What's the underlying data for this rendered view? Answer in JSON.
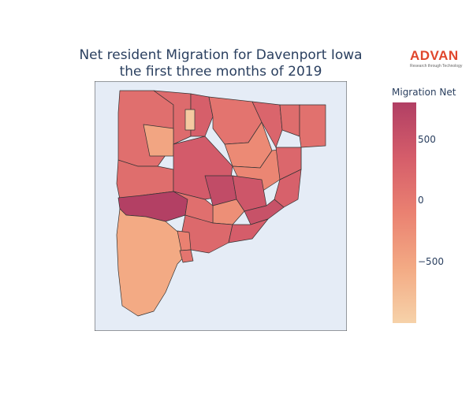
{
  "title": {
    "line1": "Net resident Migration for Davenport Iowa",
    "line2": "the first three months of 2019"
  },
  "brand": {
    "name": "ADVAN",
    "tagline": "Research through Technology",
    "color": "#e0462c"
  },
  "colorbar": {
    "title": "Migration Net",
    "ticks": [
      {
        "label": "500",
        "value": 500
      },
      {
        "label": "0",
        "value": 0
      },
      {
        "label": "−500",
        "value": -500
      }
    ],
    "range": [
      -1000,
      800
    ],
    "colorscale": [
      "#f6d2a9",
      "#f3aa84",
      "#ea8171",
      "#d55d6a",
      "#b13f64"
    ]
  },
  "map": {
    "background": "#e5ecf6",
    "border_color": "#444444",
    "regions": [
      {
        "id": "north-west",
        "value": 120
      },
      {
        "id": "north-central-1",
        "value": 180
      },
      {
        "id": "north-central-2",
        "value": 320
      },
      {
        "id": "north-narrow",
        "value": -900
      },
      {
        "id": "north-east-1",
        "value": 60
      },
      {
        "id": "north-east-2",
        "value": -200
      },
      {
        "id": "north-east-3",
        "value": 250
      },
      {
        "id": "north-east-4",
        "value": 150
      },
      {
        "id": "north-east-5",
        "value": 100
      },
      {
        "id": "north-west-lobe",
        "value": -500
      },
      {
        "id": "mid-west",
        "value": 140
      },
      {
        "id": "mid-central",
        "value": 380
      },
      {
        "id": "mid-east",
        "value": -150
      },
      {
        "id": "mid-north-east",
        "value": 220
      },
      {
        "id": "east-small",
        "value": 300
      },
      {
        "id": "central-cluster-1",
        "value": 600
      },
      {
        "id": "central-cluster-2",
        "value": 450
      },
      {
        "id": "central-cluster-3",
        "value": -250
      },
      {
        "id": "central-cluster-4",
        "value": 520
      },
      {
        "id": "west-band",
        "value": 780
      },
      {
        "id": "west-mid",
        "value": 120
      },
      {
        "id": "south-central",
        "value": 200
      },
      {
        "id": "south-east",
        "value": 350
      },
      {
        "id": "south-west",
        "value": -550
      },
      {
        "id": "south-small-1",
        "value": -100
      },
      {
        "id": "south-small-2",
        "value": 50
      }
    ]
  }
}
